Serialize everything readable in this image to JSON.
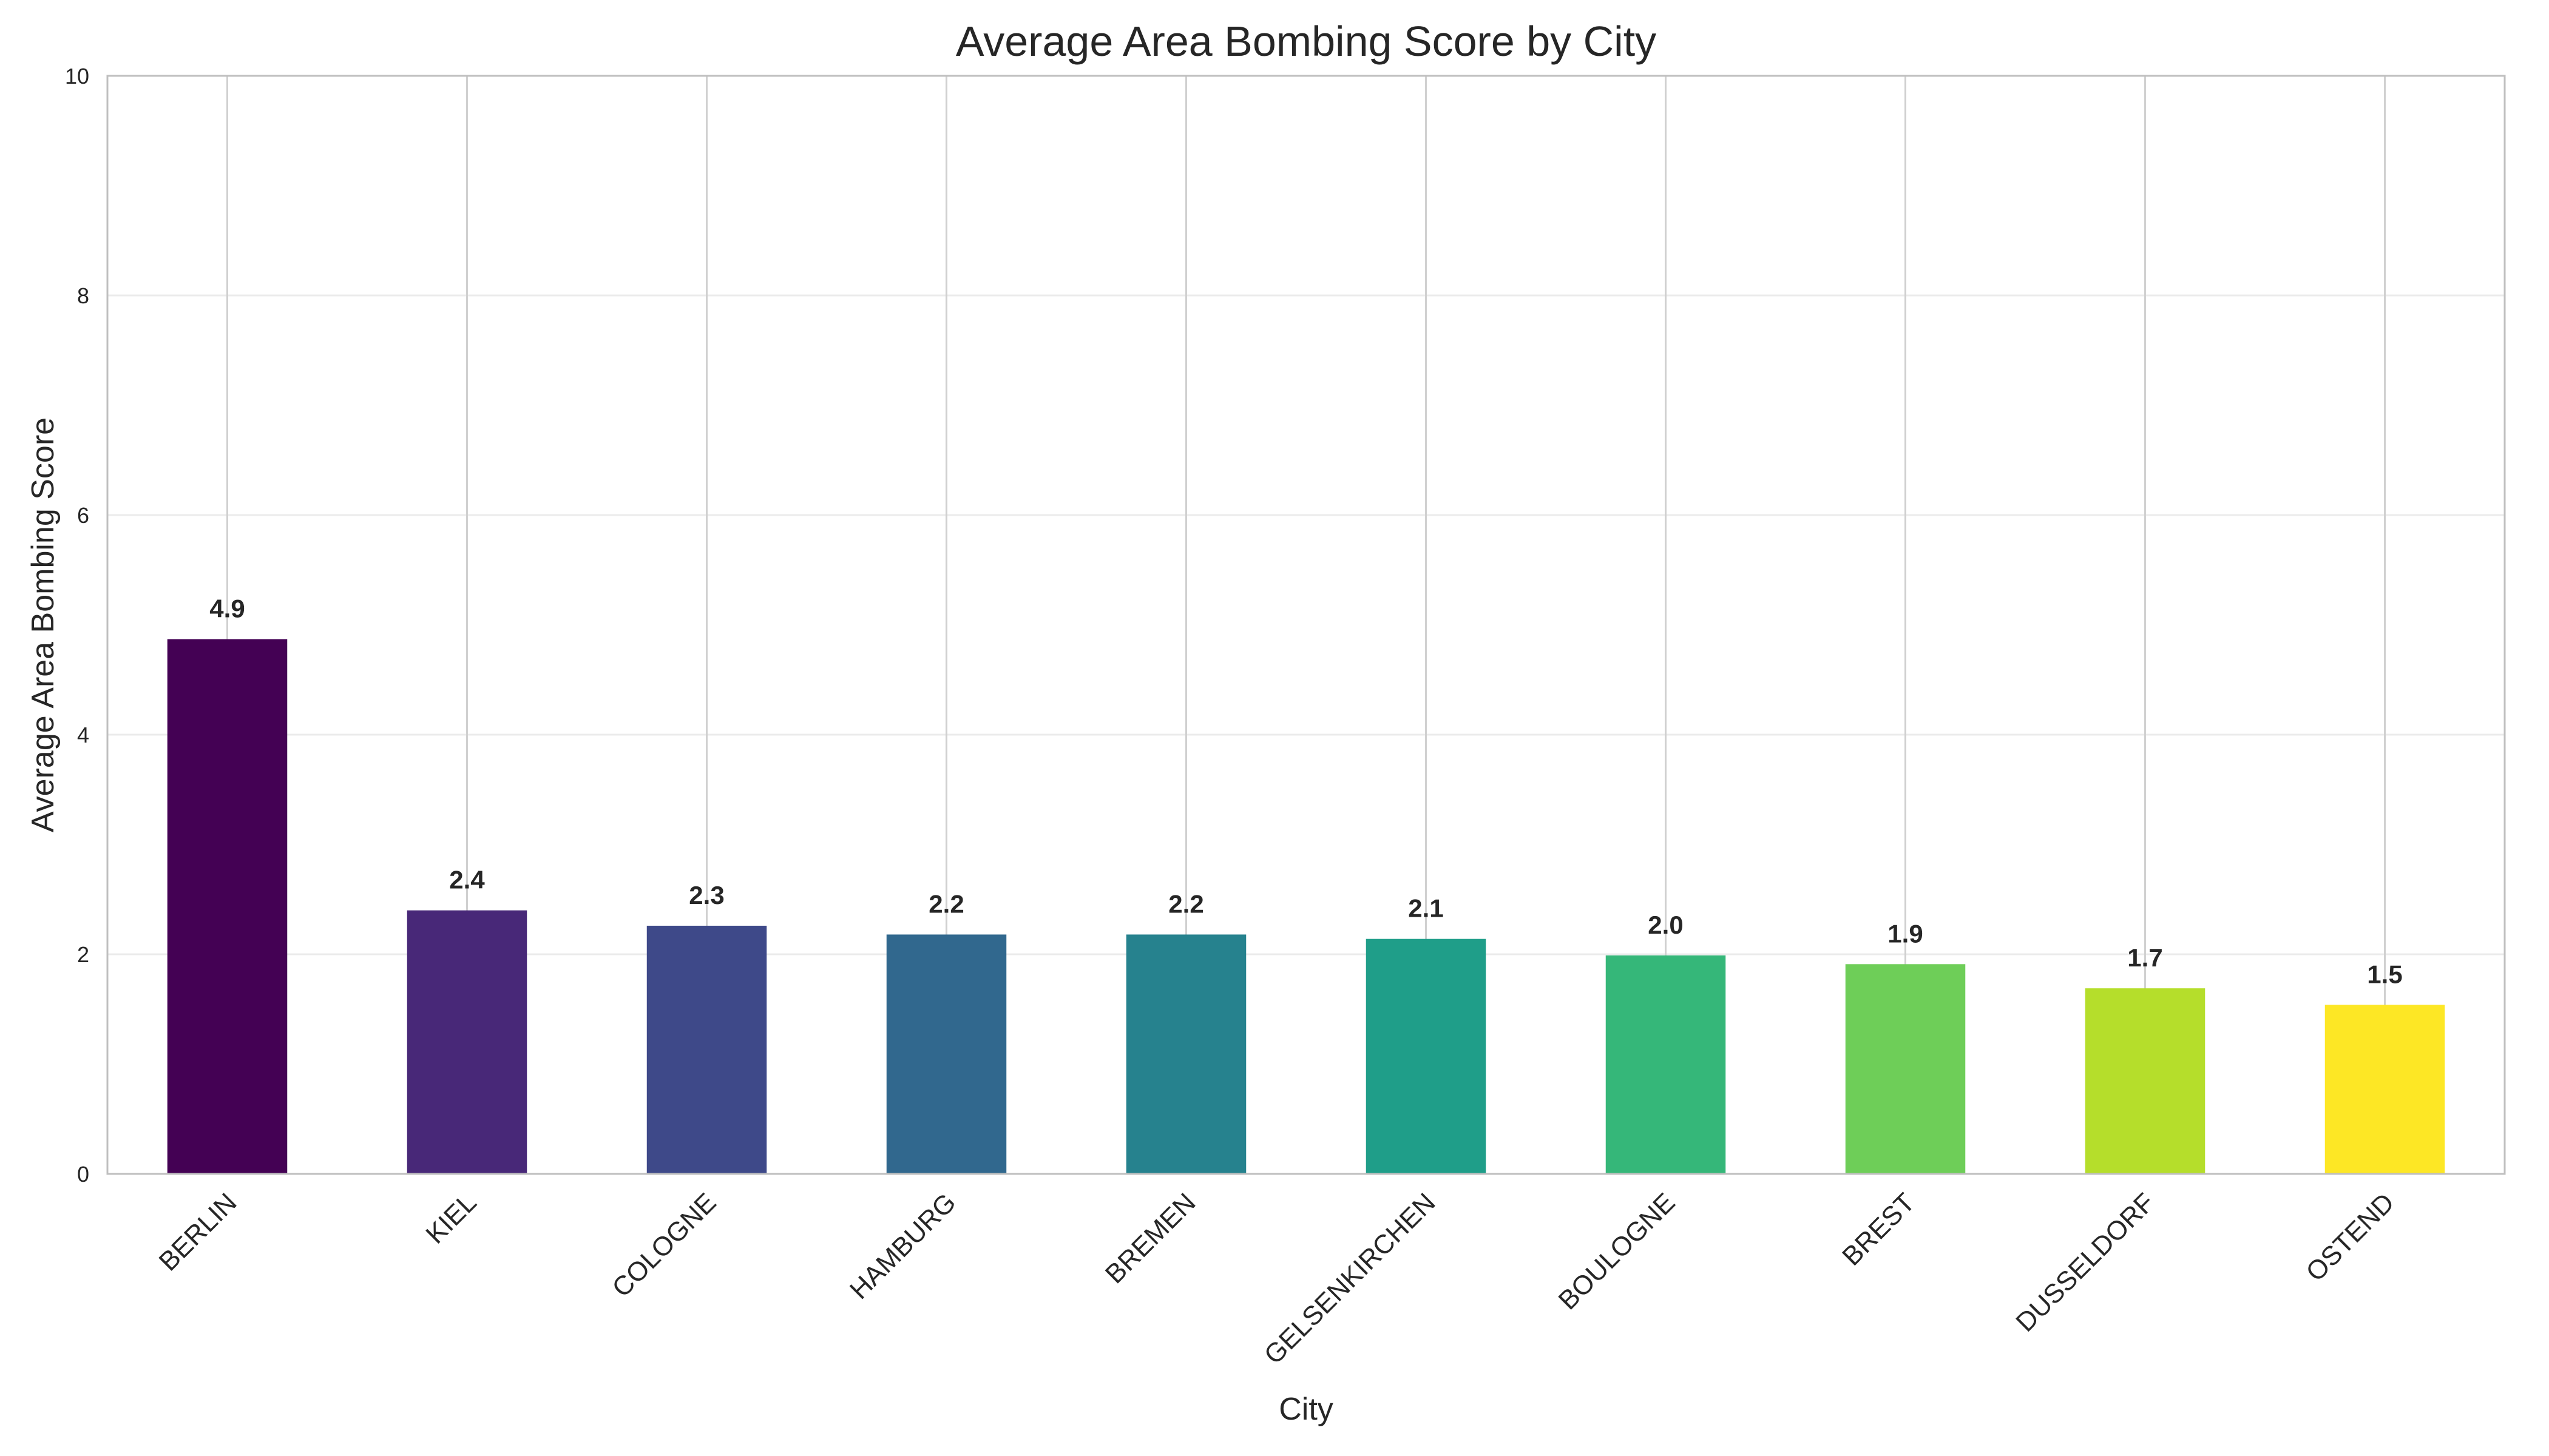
{
  "chart_data": {
    "type": "bar",
    "title": "Average Area Bombing Score by City",
    "xlabel": "City",
    "ylabel": "Average Area Bombing Score",
    "categories": [
      "BERLIN",
      "KIEL",
      "COLOGNE",
      "HAMBURG",
      "BREMEN",
      "GELSENKIRCHEN",
      "BOULOGNE",
      "BREST",
      "DUSSELDORF",
      "OSTEND"
    ],
    "values": [
      4.87,
      2.4,
      2.26,
      2.18,
      2.18,
      2.14,
      1.99,
      1.91,
      1.69,
      1.54
    ],
    "data_labels": [
      "4.9",
      "2.4",
      "2.3",
      "2.2",
      "2.2",
      "2.1",
      "2.0",
      "1.9",
      "1.7",
      "1.5"
    ],
    "colors": [
      "#440154",
      "#482878",
      "#3e4989",
      "#31688e",
      "#26828e",
      "#1f9e89",
      "#35b779",
      "#6ece58",
      "#b5de2b",
      "#fde725"
    ],
    "ylim": [
      0,
      10
    ],
    "yticks": [
      0,
      2,
      4,
      6,
      8,
      10
    ],
    "ytick_labels": [
      "0",
      "2",
      "4",
      "6",
      "8",
      "10"
    ],
    "grid": true,
    "legend": "none"
  }
}
